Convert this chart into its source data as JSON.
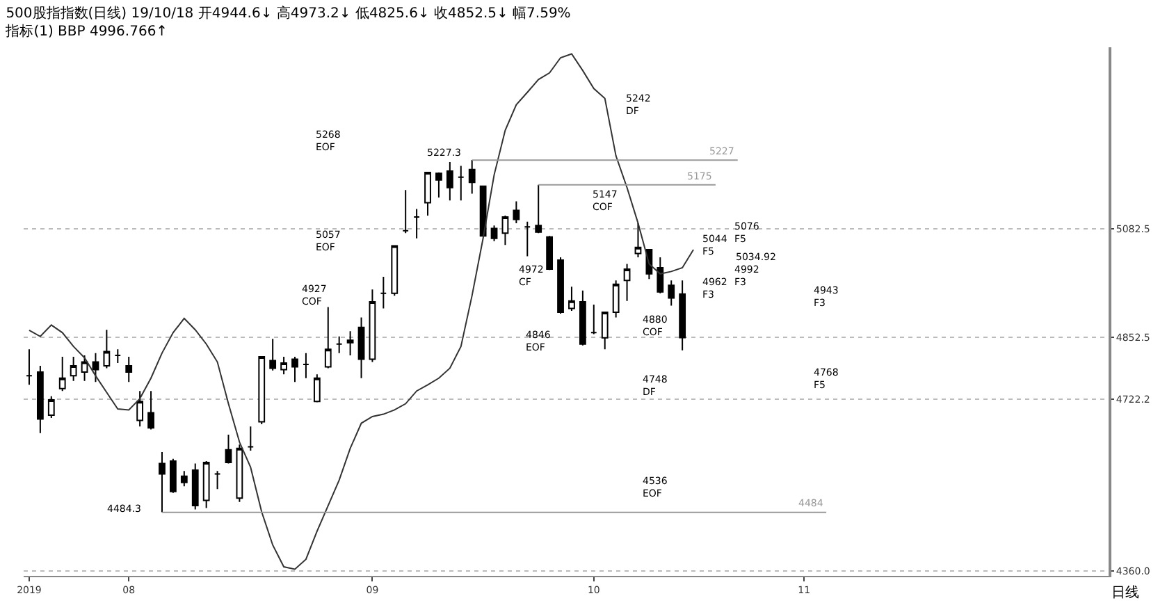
{
  "chart_data": {
    "type": "candlestick",
    "title": "500股指指数(日线) 19/10/18 开4944.6↓ 高4973.2↓ 低4825.6↓ 收4852.5↓ 幅7.59%",
    "subtitle": "指标(1) BBP 4996.766↑",
    "categories": [
      "2019",
      null,
      null,
      null,
      null,
      null,
      null,
      null,
      null,
      "08",
      null,
      null,
      null,
      null,
      null,
      null,
      null,
      null,
      null,
      null,
      null,
      null,
      null,
      null,
      null,
      null,
      null,
      null,
      null,
      null,
      null,
      "09",
      null,
      null,
      null,
      null,
      null,
      null,
      null,
      null,
      null,
      null,
      null,
      null,
      null,
      null,
      null,
      null,
      null,
      null,
      null,
      "10",
      null,
      null,
      null,
      null,
      null,
      null,
      null,
      null,
      null,
      null,
      null,
      null,
      null,
      null,
      null,
      null,
      null,
      null,
      "11",
      null,
      null,
      null,
      null,
      null,
      null,
      null,
      null,
      null,
      null,
      null,
      null,
      null,
      null,
      null,
      null,
      null,
      null,
      null,
      null,
      null,
      null,
      null,
      null,
      null,
      null,
      null
    ],
    "ohlc": [
      [
        4772,
        4828,
        4753,
        4772
      ],
      [
        4780,
        4793,
        4651,
        4681
      ],
      [
        4689,
        4729,
        4683,
        4721
      ],
      [
        4745,
        4812,
        4740,
        4767
      ],
      [
        4772,
        4812,
        4761,
        4793
      ],
      [
        4780,
        4815,
        4761,
        4801
      ],
      [
        4801,
        4820,
        4759,
        4785
      ],
      [
        4793,
        4869,
        4788,
        4823
      ],
      [
        4815,
        4828,
        4799,
        4815
      ],
      [
        4793,
        4812,
        4759,
        4780
      ],
      [
        4678,
        4740,
        4665,
        4718
      ],
      [
        4694,
        4740,
        4659,
        4662
      ],
      [
        4587,
        4611,
        4484.3,
        4565
      ],
      [
        4592,
        4597,
        4525,
        4528
      ],
      [
        4560,
        4571,
        4539,
        4547
      ],
      [
        4573,
        4587,
        4490,
        4498
      ],
      [
        4509,
        4592,
        4493,
        4589
      ],
      [
        4565,
        4571,
        4533,
        4565
      ],
      [
        4616,
        4648,
        4587,
        4589
      ],
      [
        4514,
        4627,
        4506,
        4619
      ],
      [
        4622,
        4665,
        4614,
        4622
      ],
      [
        4675,
        4812,
        4670,
        4812
      ],
      [
        4804,
        4850,
        4783,
        4788
      ],
      [
        4785,
        4812,
        4775,
        4799
      ],
      [
        4807,
        4812,
        4759,
        4791
      ],
      [
        4796,
        4820,
        4767,
        4796
      ],
      [
        4718,
        4775,
        4716,
        4767
      ],
      [
        4791,
        4917,
        4788,
        4828
      ],
      [
        4839,
        4855,
        4820,
        4839
      ],
      [
        4847,
        4866,
        4815,
        4842
      ],
      [
        4874,
        4895,
        4767,
        4807
      ],
      [
        4807,
        4954,
        4801,
        4928
      ],
      [
        4946,
        4981,
        4914,
        4946
      ],
      [
        4946,
        5046,
        4941,
        5046
      ],
      [
        5078,
        5164,
        5073,
        5078
      ],
      [
        5107,
        5124,
        5062,
        5107
      ],
      [
        5137,
        5201,
        5110,
        5201
      ],
      [
        5199,
        5201,
        5148,
        5185
      ],
      [
        5204,
        5223,
        5142,
        5169
      ],
      [
        5191,
        5215,
        5142,
        5191
      ],
      [
        5207,
        5227.3,
        5156,
        5180
      ],
      [
        5172,
        5172,
        5067,
        5067
      ],
      [
        5083,
        5089,
        5056,
        5062
      ],
      [
        5073,
        5110,
        5048,
        5107
      ],
      [
        5121,
        5140,
        5094,
        5102
      ],
      [
        5086,
        5097,
        5024,
        5086
      ],
      [
        5089,
        5175,
        5073,
        5075
      ],
      [
        5065,
        5067,
        4995,
        4997
      ],
      [
        5016,
        5022,
        4903,
        4906
      ],
      [
        4914,
        4960,
        4909,
        4930
      ],
      [
        4928,
        4952,
        4836,
        4839
      ],
      [
        4863,
        4922,
        4860,
        4863
      ],
      [
        4852,
        4906,
        4828,
        4906
      ],
      [
        4906,
        4973,
        4895,
        4965
      ],
      [
        4973,
        5008,
        4930,
        4997
      ],
      [
        5030,
        5094,
        5022,
        5043
      ],
      [
        5038,
        5038,
        4976,
        4987
      ],
      [
        5000,
        5022,
        4946,
        4949
      ],
      [
        4963,
        4973,
        4920,
        4936
      ],
      [
        4944.6,
        4973.2,
        4825.6,
        4852.5
      ],
      null,
      null,
      null,
      null,
      null,
      null,
      null,
      null,
      null,
      null,
      null,
      null,
      null,
      null,
      null,
      null,
      null,
      null,
      null,
      null,
      null,
      null,
      null,
      null,
      null,
      null,
      null,
      null,
      null,
      null,
      null,
      null,
      null,
      null,
      null,
      null,
      null,
      null
    ],
    "series": [
      {
        "type": "line",
        "color": "#333333",
        "values": [
          4868,
          4855,
          4879,
          4863,
          4834,
          4810,
          4772,
          4737,
          4702,
          4700,
          4724,
          4767,
          4820,
          4863,
          4893,
          4869,
          4839,
          4801,
          4713,
          4632,
          4579,
          4485,
          4415,
          4369,
          4364,
          4385,
          4444,
          4498,
          4552,
          4619,
          4672,
          4686,
          4691,
          4700,
          4713,
          4740,
          4753,
          4767,
          4788,
          4834,
          4941,
          5062,
          5196,
          5290,
          5344,
          5370,
          5397,
          5411,
          5443,
          5451,
          5416,
          5378,
          5357,
          5236,
          5169,
          5094,
          5008,
          4987,
          4992,
          5000,
          5038,
          null,
          null,
          null,
          null,
          null,
          null,
          null,
          null,
          null,
          null,
          null,
          null,
          null,
          null,
          null,
          null,
          null,
          null,
          null,
          null,
          null,
          null,
          null,
          null,
          null,
          null,
          null,
          null,
          null,
          null,
          null,
          null,
          null,
          null,
          null,
          null,
          null
        ]
      }
    ],
    "ylim": [
      4350,
      5465
    ],
    "yticks": [
      5082.5,
      4852.5,
      4722.2,
      {
        "value": 4360,
        "label": "4360.0"
      }
    ],
    "grid": "y",
    "ref_lines": [
      {
        "axis": "y",
        "value": 5227,
        "label": "5227",
        "color": "#999999"
      },
      {
        "axis": "y",
        "value": 5175,
        "label": "5175",
        "color": "#999999"
      },
      {
        "axis": "y",
        "value": 4484,
        "label": "4484",
        "color": "#999999"
      }
    ],
    "annotations": [
      "5268\nEOF",
      "5057\nEOF",
      "4927\nCOF",
      "5242\nDF",
      "5147\nCOF",
      "4972\nCF",
      "4846\nEOF",
      "4880\nCOF",
      "4748\nDF",
      "4536\nEOF",
      "5044\nF5",
      "4962\nF3",
      "5076\nF5",
      "4992\nF3",
      "4943\nF3",
      "4768\nF5",
      "5034.92",
      "5227.3",
      "4484.3",
      "日线"
    ]
  }
}
